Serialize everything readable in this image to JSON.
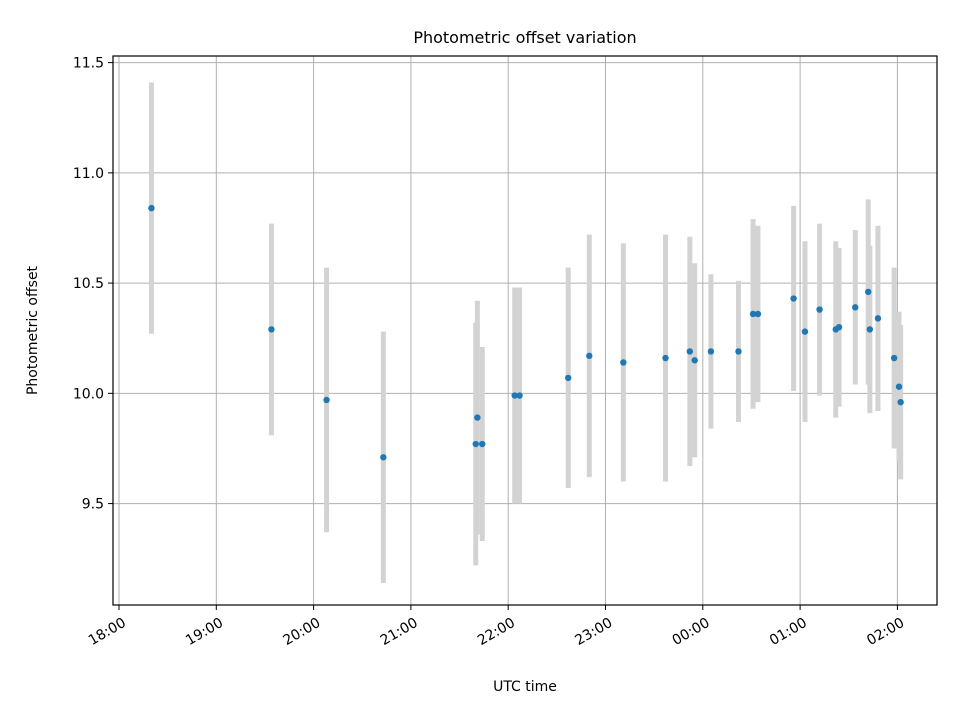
{
  "chart_data": {
    "type": "scatter",
    "title": "Photometric offset variation",
    "xlabel": "UTC time",
    "ylabel": "Photometric offset",
    "x_ticks": [
      "18:00",
      "19:00",
      "20:00",
      "21:00",
      "22:00",
      "23:00",
      "00:00",
      "01:00",
      "02:00"
    ],
    "y_ticks": [
      "9.5",
      "10.0",
      "10.5",
      "11.0",
      "11.5"
    ],
    "ylim": [
      9.04,
      11.53
    ],
    "grid": true,
    "point_color": "#1f77b4",
    "errorbar_color": "#d3d3d3",
    "points": [
      {
        "t": "18:20",
        "y": 10.84,
        "err": 0.57
      },
      {
        "t": "19:34",
        "y": 10.29,
        "err": 0.48
      },
      {
        "t": "20:08",
        "y": 9.97,
        "err": 0.6
      },
      {
        "t": "20:43",
        "y": 9.71,
        "err": 0.57
      },
      {
        "t": "21:40",
        "y": 9.77,
        "err": 0.55
      },
      {
        "t": "21:41",
        "y": 9.89,
        "err": 0.53
      },
      {
        "t": "21:44",
        "y": 9.77,
        "err": 0.44
      },
      {
        "t": "22:04",
        "y": 9.99,
        "err": 0.49
      },
      {
        "t": "22:07",
        "y": 9.99,
        "err": 0.49
      },
      {
        "t": "22:37",
        "y": 10.07,
        "err": 0.5
      },
      {
        "t": "22:50",
        "y": 10.17,
        "err": 0.55
      },
      {
        "t": "23:11",
        "y": 10.14,
        "err": 0.54
      },
      {
        "t": "23:37",
        "y": 10.16,
        "err": 0.56
      },
      {
        "t": "23:52",
        "y": 10.19,
        "err": 0.52
      },
      {
        "t": "23:55",
        "y": 10.15,
        "err": 0.44
      },
      {
        "t": "00:05",
        "y": 10.19,
        "err": 0.35
      },
      {
        "t": "00:22",
        "y": 10.19,
        "err": 0.32
      },
      {
        "t": "00:31",
        "y": 10.36,
        "err": 0.43
      },
      {
        "t": "00:34",
        "y": 10.36,
        "err": 0.4
      },
      {
        "t": "00:56",
        "y": 10.43,
        "err": 0.42
      },
      {
        "t": "01:03",
        "y": 10.28,
        "err": 0.41
      },
      {
        "t": "01:12",
        "y": 10.38,
        "err": 0.39
      },
      {
        "t": "01:22",
        "y": 10.29,
        "err": 0.4
      },
      {
        "t": "01:24",
        "y": 10.3,
        "err": 0.36
      },
      {
        "t": "01:34",
        "y": 10.39,
        "err": 0.35
      },
      {
        "t": "01:42",
        "y": 10.46,
        "err": 0.42
      },
      {
        "t": "01:43",
        "y": 10.29,
        "err": 0.38
      },
      {
        "t": "01:48",
        "y": 10.34,
        "err": 0.42
      },
      {
        "t": "01:58",
        "y": 10.16,
        "err": 0.41
      },
      {
        "t": "02:01",
        "y": 10.03,
        "err": 0.34
      },
      {
        "t": "02:02",
        "y": 9.96,
        "err": 0.35
      }
    ]
  }
}
